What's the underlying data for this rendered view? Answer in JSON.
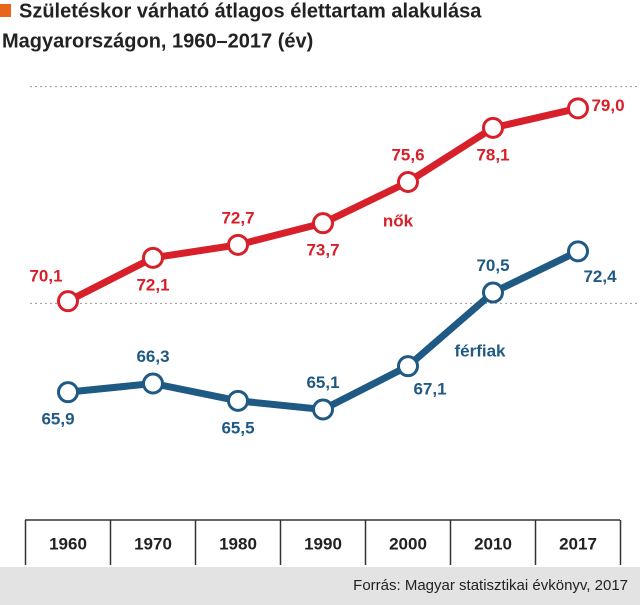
{
  "chart_data": {
    "type": "line",
    "title": [
      "Születéskor várható átlagos élettartam alakulása",
      "Magyarországon, 1960–2017 (év)"
    ],
    "categories": [
      "1960",
      "1970",
      "1980",
      "1990",
      "2000",
      "2010",
      "2017"
    ],
    "series": [
      {
        "name": "nők",
        "color": "#d7202a",
        "values": [
          70.1,
          72.1,
          72.7,
          73.7,
          75.6,
          78.1,
          79.0
        ],
        "value_labels": [
          "70,1",
          "72,1",
          "72,7",
          "73,7",
          "75,6",
          "78,1",
          "79,0"
        ]
      },
      {
        "name": "férfiak",
        "color": "#1f5a85",
        "values": [
          65.9,
          66.3,
          65.5,
          65.1,
          67.1,
          70.5,
          72.4
        ],
        "value_labels": [
          "65,9",
          "66,3",
          "65,5",
          "65,1",
          "67,1",
          "70,5",
          "72,4"
        ]
      }
    ],
    "ylim": [
      60,
      81
    ],
    "gridlines": [
      70,
      80
    ],
    "source": "Forrás: Magyar statisztikai évkönyv, 2017"
  }
}
